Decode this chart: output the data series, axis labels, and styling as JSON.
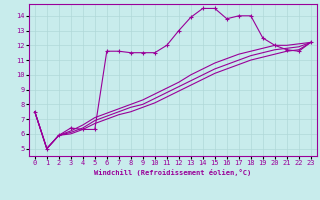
{
  "xlabel": "Windchill (Refroidissement éolien,°C)",
  "bg_color": "#c8ecec",
  "line_color": "#990099",
  "grid_color": "#b0d8d8",
  "xlim": [
    -0.5,
    23.5
  ],
  "ylim": [
    4.5,
    14.8
  ],
  "xticks": [
    0,
    1,
    2,
    3,
    4,
    5,
    6,
    7,
    8,
    9,
    10,
    11,
    12,
    13,
    14,
    15,
    16,
    17,
    18,
    19,
    20,
    21,
    22,
    23
  ],
  "yticks": [
    5,
    6,
    7,
    8,
    9,
    10,
    11,
    12,
    13,
    14
  ],
  "series": [
    {
      "x": [
        0,
        1,
        2,
        3,
        4,
        5,
        6,
        7,
        8,
        9,
        10,
        11,
        12,
        13,
        14,
        15,
        16,
        17,
        18,
        19,
        20,
        21,
        22,
        23
      ],
      "y": [
        7.5,
        5.0,
        5.9,
        6.4,
        6.3,
        6.3,
        11.6,
        11.6,
        11.5,
        11.5,
        11.5,
        12.0,
        13.0,
        13.9,
        14.5,
        14.5,
        13.8,
        14.0,
        14.0,
        12.5,
        12.0,
        11.7,
        11.6,
        12.2
      ],
      "marker": "+"
    },
    {
      "x": [
        0,
        1,
        2,
        3,
        4,
        5,
        6,
        7,
        8,
        9,
        10,
        11,
        12,
        13,
        14,
        15,
        16,
        17,
        18,
        19,
        20,
        21,
        22,
        23
      ],
      "y": [
        7.5,
        5.0,
        5.9,
        6.0,
        6.3,
        6.7,
        7.0,
        7.3,
        7.5,
        7.8,
        8.1,
        8.5,
        8.9,
        9.3,
        9.7,
        10.1,
        10.4,
        10.7,
        11.0,
        11.2,
        11.4,
        11.6,
        11.7,
        12.2
      ],
      "marker": null
    },
    {
      "x": [
        0,
        1,
        2,
        3,
        4,
        5,
        6,
        7,
        8,
        9,
        10,
        11,
        12,
        13,
        14,
        15,
        16,
        17,
        18,
        19,
        20,
        21,
        22,
        23
      ],
      "y": [
        7.5,
        5.0,
        5.9,
        6.1,
        6.4,
        6.9,
        7.2,
        7.5,
        7.8,
        8.0,
        8.4,
        8.8,
        9.2,
        9.6,
        10.0,
        10.4,
        10.7,
        11.0,
        11.3,
        11.5,
        11.7,
        11.8,
        11.9,
        12.2
      ],
      "marker": null
    },
    {
      "x": [
        0,
        1,
        2,
        3,
        4,
        5,
        6,
        7,
        8,
        9,
        10,
        11,
        12,
        13,
        14,
        15,
        16,
        17,
        18,
        19,
        20,
        21,
        22,
        23
      ],
      "y": [
        7.5,
        5.0,
        5.9,
        6.2,
        6.6,
        7.1,
        7.4,
        7.7,
        8.0,
        8.3,
        8.7,
        9.1,
        9.5,
        10.0,
        10.4,
        10.8,
        11.1,
        11.4,
        11.6,
        11.8,
        12.0,
        12.0,
        12.1,
        12.2
      ],
      "marker": null
    }
  ]
}
